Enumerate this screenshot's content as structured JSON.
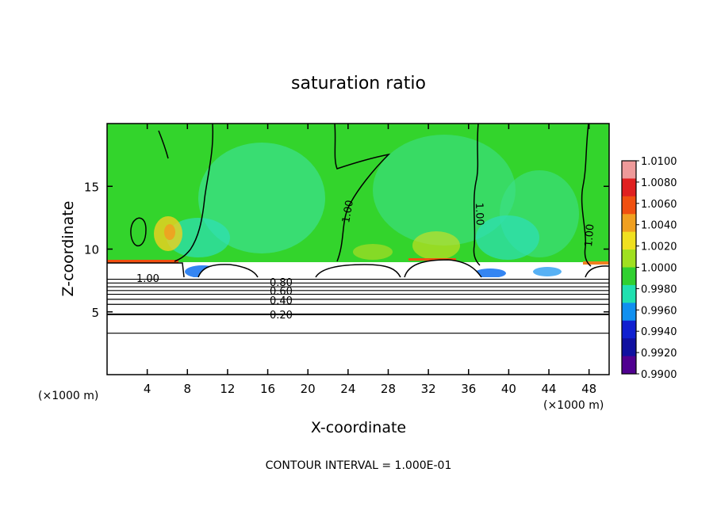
{
  "chart_data": {
    "type": "heatmap",
    "title": "saturation ratio",
    "xlabel": "X-coordinate",
    "ylabel": "Z-coordinate",
    "x_unit_left": "(×1000 m)",
    "x_unit_right": "(×1000 m)",
    "xlim": [
      0,
      50
    ],
    "ylim": [
      0,
      20
    ],
    "x_ticks": [
      4,
      8,
      12,
      16,
      20,
      24,
      28,
      32,
      36,
      40,
      44,
      48
    ],
    "x_tick_labels": [
      "4",
      "8",
      "12",
      "16",
      "20",
      "24",
      "28",
      "32",
      "36",
      "40",
      "44",
      "48"
    ],
    "y_ticks": [
      5,
      10,
      15
    ],
    "y_tick_labels": [
      "5",
      "10",
      "15"
    ],
    "colorbar": {
      "min": 0.99,
      "max": 1.01,
      "ticks": [
        "1.0100",
        "1.0080",
        "1.0060",
        "1.0040",
        "1.0020",
        "1.0000",
        "0.9980",
        "0.9960",
        "0.9940",
        "0.9920",
        "0.9900"
      ],
      "colors": [
        "#ee9a9a",
        "#e02020",
        "#f05010",
        "#f0a020",
        "#f0e020",
        "#a0e020",
        "#30d030",
        "#20e0b0",
        "#1090f0",
        "#1020d0",
        "#1010a0",
        "#500090"
      ]
    },
    "contour_labels": [
      "1.00",
      "1.00",
      "1.00",
      "1.00",
      "0.80",
      "0.60",
      "0.40",
      "0.20"
    ],
    "contour_interval_text": "CONTOUR INTERVAL = 1.000E-01",
    "saturated_layer_top_z": 9.0,
    "contour_levels_below": [
      0.9,
      0.8,
      0.7,
      0.6,
      0.5,
      0.4,
      0.3,
      0.2,
      0.1
    ],
    "contour_z_below": [
      7.6,
      7.3,
      7.0,
      6.7,
      6.4,
      6.0,
      5.6,
      4.8,
      3.3
    ]
  }
}
